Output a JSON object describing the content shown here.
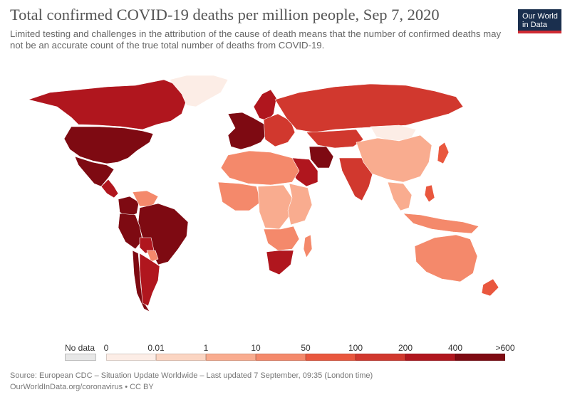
{
  "title": "Total confirmed COVID-19 deaths per million people, Sep 7, 2020",
  "subtitle": "Limited testing and challenges in the attribution of the cause of death means that the number of confirmed deaths may not be an accurate count of the true total number of deaths from COVID-19.",
  "logo": {
    "line1": "Our World",
    "line2": "in Data",
    "bg": "#1a2f4e",
    "accent": "#cf2a33"
  },
  "legend": {
    "nodata_label": "No data",
    "ticks": [
      "0",
      "0.01",
      "1",
      "10",
      "50",
      "100",
      "200",
      "400",
      ">600"
    ],
    "colors": [
      "#fcede6",
      "#fbd5c2",
      "#f9ac8f",
      "#f4896b",
      "#e9573e",
      "#d1382e",
      "#b0161e",
      "#7e0a12"
    ]
  },
  "footer": {
    "source": "Source: European CDC – Situation Update Worldwide – Last updated 7 September, 09:35 (London time)",
    "url": "OurWorldInData.org/coronavirus • CC BY"
  },
  "map_regions": [
    {
      "region": "Canada",
      "bin": 6
    },
    {
      "region": "United States",
      "bin": 7
    },
    {
      "region": "Mexico",
      "bin": 7
    },
    {
      "region": "Central America",
      "bin": 6
    },
    {
      "region": "Greenland",
      "bin": 0
    },
    {
      "region": "Brazil",
      "bin": 7
    },
    {
      "region": "Peru",
      "bin": 7
    },
    {
      "region": "Colombia",
      "bin": 7
    },
    {
      "region": "Chile",
      "bin": 7
    },
    {
      "region": "Argentina",
      "bin": 6
    },
    {
      "region": "Venezuela",
      "bin": 3
    },
    {
      "region": "Bolivia",
      "bin": 6
    },
    {
      "region": "Paraguay",
      "bin": 3
    },
    {
      "region": "Western Europe",
      "bin": 7
    },
    {
      "region": "Scandinavia",
      "bin": 6
    },
    {
      "region": "Eastern Europe",
      "bin": 5
    },
    {
      "region": "Russia",
      "bin": 5
    },
    {
      "region": "Kazakhstan",
      "bin": 5
    },
    {
      "region": "Iran",
      "bin": 7
    },
    {
      "region": "Saudi Arabia",
      "bin": 6
    },
    {
      "region": "India",
      "bin": 5
    },
    {
      "region": "China",
      "bin": 2
    },
    {
      "region": "Mongolia",
      "bin": 0
    },
    {
      "region": "Southeast Asia",
      "bin": 2
    },
    {
      "region": "Indonesia",
      "bin": 3
    },
    {
      "region": "Philippines",
      "bin": 4
    },
    {
      "region": "Japan",
      "bin": 4
    },
    {
      "region": "Australia",
      "bin": 3
    },
    {
      "region": "New Zealand",
      "bin": 4
    },
    {
      "region": "North Africa",
      "bin": 3
    },
    {
      "region": "West Africa",
      "bin": 3
    },
    {
      "region": "Central Africa",
      "bin": 2
    },
    {
      "region": "East Africa",
      "bin": 2
    },
    {
      "region": "South Africa",
      "bin": 6
    },
    {
      "region": "Madagascar",
      "bin": 3
    }
  ]
}
